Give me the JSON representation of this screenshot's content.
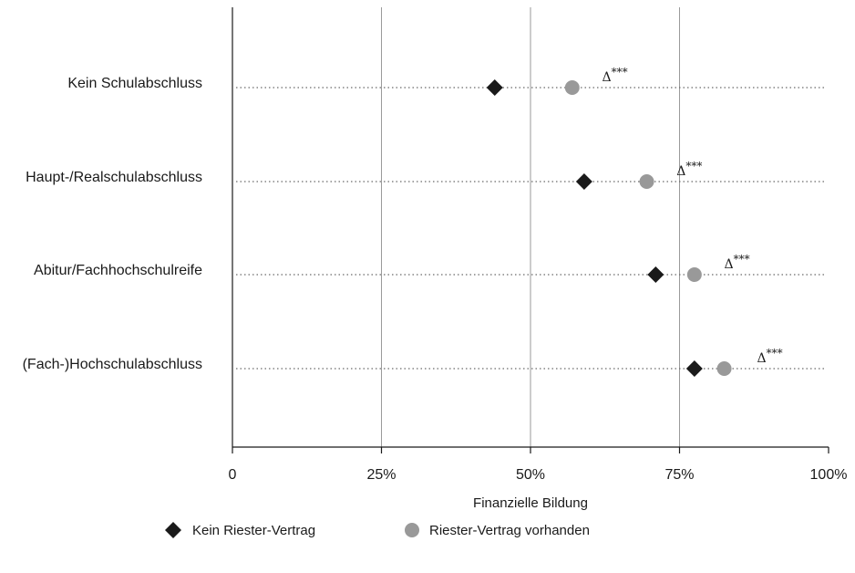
{
  "chart_data": {
    "type": "scatter",
    "title": "",
    "xlabel": "Finanzielle Bildung",
    "ylabel": "",
    "xlim": [
      0,
      100
    ],
    "x_ticks": [
      "0",
      "25%",
      "50%",
      "75%",
      "100%"
    ],
    "x_tick_values": [
      0,
      25,
      50,
      75,
      100
    ],
    "grid": "vertical",
    "legend_position": "bottom",
    "categories": [
      "Kein Schulabschluss",
      "Haupt-/Realschulabschluss",
      "Abitur/Fachhochschulreife",
      "(Fach-)Hochschulabschluss"
    ],
    "series": [
      {
        "name": "Kein Riester-Vertrag",
        "marker": "diamond",
        "color": "#1a1a1a",
        "values": [
          44,
          59,
          71,
          77.5
        ]
      },
      {
        "name": "Riester-Vertrag vorhanden",
        "marker": "circle",
        "color": "#999999",
        "values": [
          57,
          69.5,
          77.5,
          82.5
        ]
      }
    ],
    "annotations": [
      {
        "category": "Kein Schulabschluss",
        "symbol": "Δ",
        "stars": "***",
        "x": 62
      },
      {
        "category": "Haupt-/Realschulabschluss",
        "symbol": "Δ",
        "stars": "***",
        "x": 74.5
      },
      {
        "category": "Abitur/Fachhochschulreife",
        "symbol": "Δ",
        "stars": "***",
        "x": 82.5
      },
      {
        "category": "(Fach-)Hochschulabschluss",
        "symbol": "Δ",
        "stars": "***",
        "x": 88
      }
    ]
  }
}
